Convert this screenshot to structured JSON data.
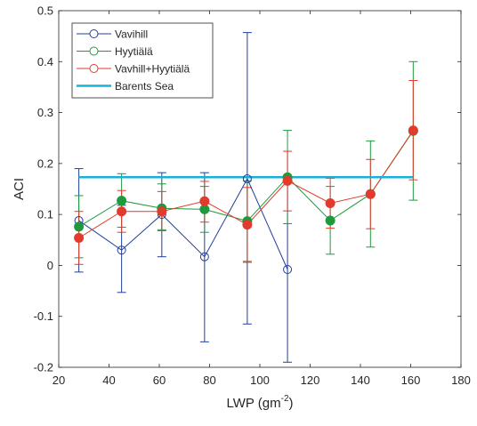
{
  "chart_data": {
    "type": "line",
    "title": "",
    "xlabel": "LWP (gm",
    "xlabel_sup": "-2",
    "xlabel_end": ")",
    "ylabel": "ACI",
    "xlim": [
      20,
      180
    ],
    "ylim": [
      -0.2,
      0.5
    ],
    "xticks": [
      20,
      40,
      60,
      80,
      100,
      120,
      140,
      160,
      180
    ],
    "yticks": [
      -0.2,
      -0.1,
      0,
      0.1,
      0.2,
      0.3,
      0.4,
      0.5
    ],
    "ytick_labels": [
      "-0.2",
      "-0.1",
      "0",
      "0.1",
      "0.2",
      "0.3",
      "0.4",
      "0.5"
    ],
    "grid": false,
    "box": true,
    "legend_position": "top-left",
    "series": [
      {
        "name": "Vavihill",
        "color": "#1f3f9c",
        "marker": "open-circle",
        "x": [
          28,
          45,
          61,
          78,
          95,
          111
        ],
        "y": [
          0.088,
          0.03,
          0.1,
          0.017,
          0.17,
          -0.008
        ],
        "err_low": [
          -0.013,
          -0.053,
          0.017,
          -0.15,
          -0.115,
          -0.19
        ],
        "err_high": [
          0.19,
          0.118,
          0.182,
          0.182,
          0.457,
          0.172
        ]
      },
      {
        "name": "Hyytiälä",
        "color": "#1e9a3c",
        "marker": "filled-circle",
        "x": [
          28,
          45,
          61,
          78,
          95,
          111,
          128,
          144,
          161
        ],
        "y": [
          0.076,
          0.127,
          0.112,
          0.11,
          0.087,
          0.173,
          0.088,
          0.14,
          0.264
        ],
        "err_low": [
          0.015,
          0.075,
          0.07,
          0.065,
          0.008,
          0.082,
          0.022,
          0.036,
          0.128
        ],
        "err_high": [
          0.137,
          0.18,
          0.16,
          0.155,
          0.166,
          0.265,
          0.155,
          0.244,
          0.4
        ]
      },
      {
        "name": "Vavhill+Hyytiälä",
        "color": "#e23a2c",
        "marker": "filled-circle",
        "x": [
          28,
          45,
          61,
          78,
          95,
          111,
          128,
          144,
          161
        ],
        "y": [
          0.054,
          0.106,
          0.106,
          0.126,
          0.08,
          0.166,
          0.122,
          0.14,
          0.265
        ],
        "err_low": [
          0.002,
          0.065,
          0.068,
          0.085,
          0.006,
          0.107,
          0.073,
          0.072,
          0.168
        ],
        "err_high": [
          0.106,
          0.147,
          0.145,
          0.165,
          0.153,
          0.224,
          0.171,
          0.208,
          0.363
        ]
      },
      {
        "name": "Barents Sea",
        "color": "#17b3d6",
        "marker": "none",
        "x": [
          28,
          161
        ],
        "y": [
          0.173,
          0.173
        ]
      }
    ]
  }
}
